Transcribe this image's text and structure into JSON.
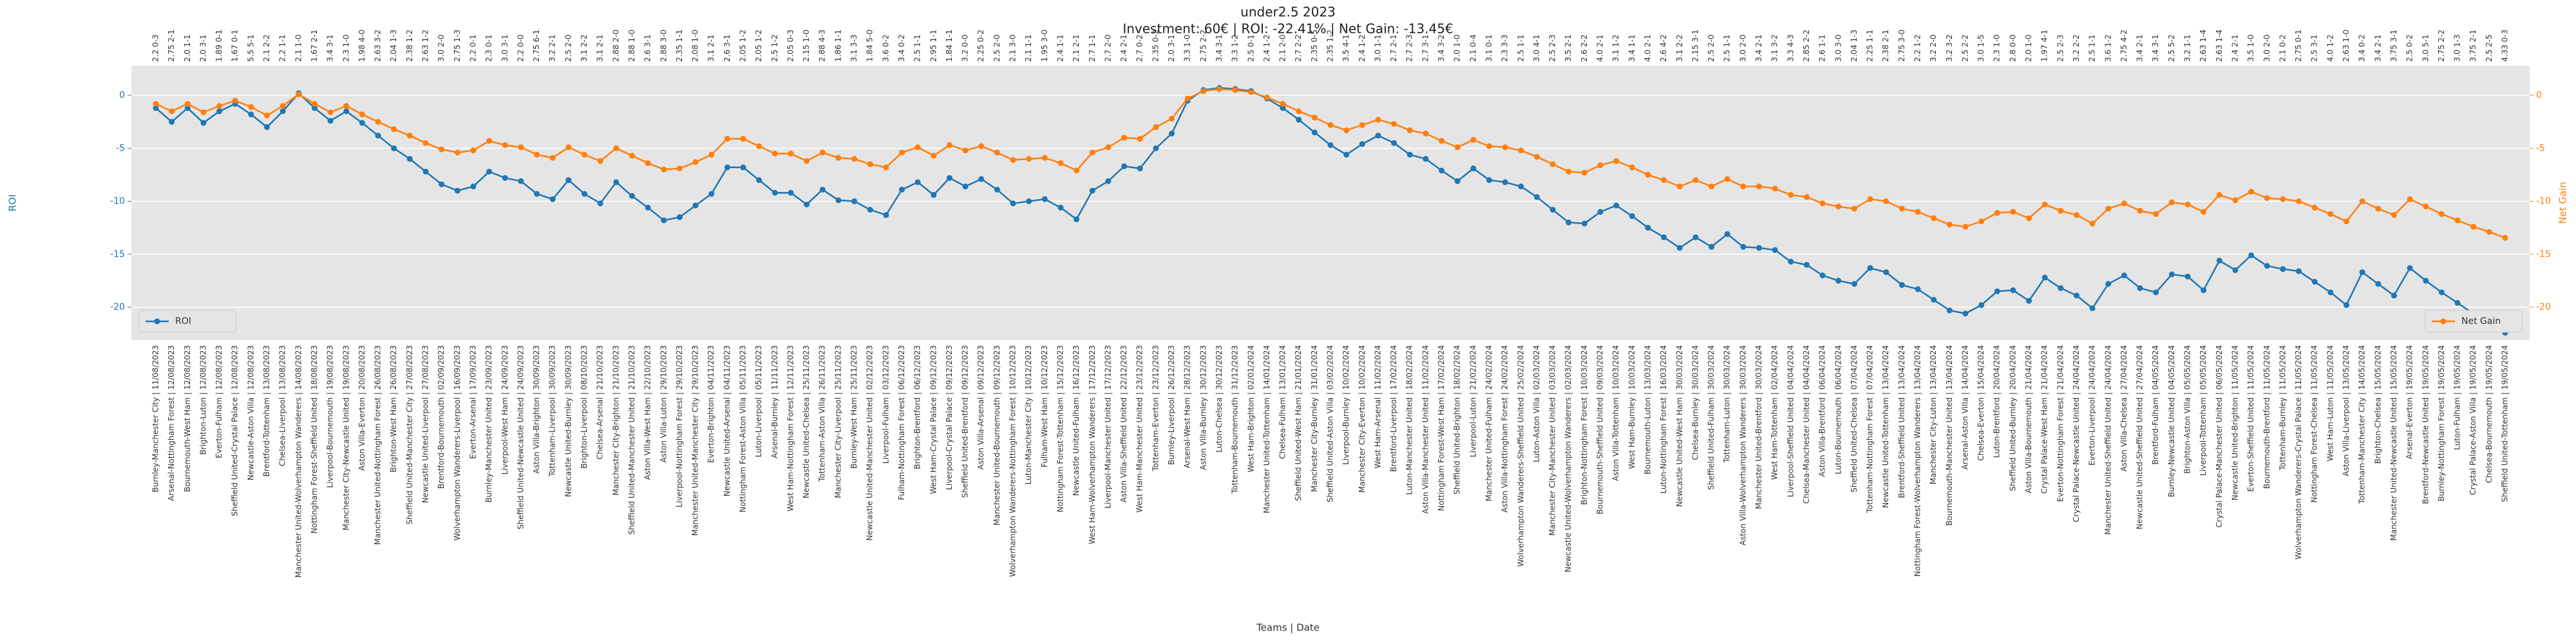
{
  "chart_data": {
    "type": "line",
    "title": "under2.5 2023",
    "subtitle": "Investment: 60€ | ROI: -22.41% | Net Gain: -13.45€",
    "x_label": "Teams | Date",
    "y_label": "ROI",
    "y2_label": "Net Gain",
    "grid": true,
    "ylim": [
      -23.1,
      2.8
    ],
    "yticks": [
      -20,
      -15,
      -10,
      -5,
      0
    ],
    "y2lim": [
      -23.1,
      2.8
    ],
    "y2ticks": [
      -20,
      -15,
      -10,
      -5,
      0
    ],
    "categories": [
      "Burnley-Manchester City | 11/08/2023",
      "Arsenal-Nottingham Forest | 12/08/2023",
      "Bournemouth-West Ham | 12/08/2023",
      "Brighton-Luton | 12/08/2023",
      "Everton-Fulham | 12/08/2023",
      "Sheffield United-Crystal Palace | 12/08/2023",
      "Newcastle-Aston Villa | 12/08/2023",
      "Brentford-Tottenham | 13/08/2023",
      "Chelsea-Liverpool | 13/08/2023",
      "Manchester United-Wolverhampton Wanderers | 14/08/2023",
      "Nottingham Forest-Sheffield United | 18/08/2023",
      "Liverpool-Bournemouth | 19/08/2023",
      "Manchester City-Newcastle United | 19/08/2023",
      "Aston Villa-Everton | 20/08/2023",
      "Manchester United-Nottingham Forest | 26/08/2023",
      "Brighton-West Ham | 26/08/2023",
      "Sheffield United-Manchester City | 27/08/2023",
      "Newcastle United-Liverpool | 27/08/2023",
      "Brentford-Bournemouth | 02/09/2023",
      "Wolverhampton Wanderers-Liverpool | 16/09/2023",
      "Everton-Arsenal | 17/09/2023",
      "Burnley-Manchester United | 23/09/2023",
      "Liverpool-West Ham | 24/09/2023",
      "Sheffield United-Newcastle United | 24/09/2023",
      "Aston Villa-Brighton | 30/09/2023",
      "Tottenham-Liverpool | 30/09/2023",
      "Newcastle United-Burnley | 30/09/2023",
      "Brighton-Liverpool | 08/10/2023",
      "Chelsea-Arsenal | 21/10/2023",
      "Manchester City-Brighton | 21/10/2023",
      "Sheffield United-Manchester United | 21/10/2023",
      "Aston Villa-West Ham | 22/10/2023",
      "Aston Villa-Luton | 29/10/2023",
      "Liverpool-Nottingham Forest | 29/10/2023",
      "Manchester United-Manchester City | 29/10/2023",
      "Everton-Brighton | 04/11/2023",
      "Newcastle United-Arsenal | 04/11/2023",
      "Nottingham Forest-Aston Villa | 05/11/2023",
      "Luton-Liverpool | 05/11/2023",
      "Arsenal-Burnley | 11/11/2023",
      "West Ham-Nottingham Forest | 12/11/2023",
      "Newcastle United-Chelsea | 25/11/2023",
      "Tottenham-Aston Villa | 26/11/2023",
      "Manchester City-Liverpool | 25/11/2023",
      "Burnley-West Ham | 25/11/2023",
      "Newcastle United-Manchester United | 02/12/2023",
      "Liverpool-Fulham | 03/12/2023",
      "Fulham-Nottingham Forest | 06/12/2023",
      "Brighton-Brentford | 06/12/2023",
      "West Ham-Crystal Palace | 09/12/2023",
      "Liverpool-Crystal Palace | 09/12/2023",
      "Sheffield United-Brentford | 09/12/2023",
      "Aston Villa-Arsenal | 09/12/2023",
      "Manchester United-Bournemouth | 09/12/2023",
      "Wolverhampton Wanderers-Nottingham Forest | 10/12/2023",
      "Luton-Manchester City | 10/12/2023",
      "Fulham-West Ham | 10/12/2023",
      "Nottingham Forest-Tottenham | 15/12/2023",
      "Newcastle United-Fulham | 16/12/2023",
      "West Ham-Wolverhampton Wanderers | 17/12/2023",
      "Liverpool-Manchester United | 17/12/2023",
      "Aston Villa-Sheffield United | 22/12/2023",
      "West Ham-Manchester United | 23/12/2023",
      "Tottenham-Everton | 23/12/2023",
      "Burnley-Liverpool | 26/12/2023",
      "Arsenal-West Ham | 28/12/2023",
      "Aston Villa-Burnley | 30/12/2023",
      "Luton-Chelsea | 30/12/2023",
      "Tottenham-Bournemouth | 31/12/2023",
      "West Ham-Brighton | 02/01/2024",
      "Manchester United-Tottenham | 14/01/2024",
      "Chelsea-Fulham | 13/01/2024",
      "Sheffield United-West Ham | 21/01/2024",
      "Manchester City-Burnley | 31/01/2024",
      "Sheffield United-Aston Villa | 03/02/2024",
      "Liverpool-Burnley | 10/02/2024",
      "Manchester City-Everton | 10/02/2024",
      "West Ham-Arsenal | 11/02/2024",
      "Brentford-Liverpool | 17/02/2024",
      "Luton-Manchester United | 18/02/2024",
      "Aston Villa-Manchester United | 11/02/2024",
      "Nottingham Forest-West Ham | 17/02/2024",
      "Sheffield United-Brighton | 18/02/2024",
      "Liverpool-Luton | 21/02/2024",
      "Manchester United-Fulham | 24/02/2024",
      "Aston Villa-Nottingham Forest | 24/02/2024",
      "Wolverhampton Wanderers-Sheffield United | 25/02/2024",
      "Luton-Aston Villa | 02/03/2024",
      "Manchester City-Manchester United | 03/03/2024",
      "Newcastle United-Wolverhampton Wanderers | 02/03/2024",
      "Brighton-Nottingham Forest | 10/03/2024",
      "Bournemouth-Sheffield United | 09/03/2024",
      "Aston Villa-Tottenham | 10/03/2024",
      "West Ham-Burnley | 10/03/2024",
      "Bournemouth-Luton | 13/03/2024",
      "Luton-Nottingham Forest | 16/03/2024",
      "Newcastle United-West Ham | 30/03/2024",
      "Chelsea-Burnley | 30/03/2024",
      "Sheffield United-Fulham | 30/03/2024",
      "Tottenham-Luton | 30/03/2024",
      "Aston Villa-Wolverhampton Wanderers | 30/03/2024",
      "Manchester United-Brentford | 30/03/2024",
      "West Ham-Tottenham | 02/04/2024",
      "Liverpool-Sheffield United | 04/04/2024",
      "Chelsea-Manchester United | 04/04/2024",
      "Aston Villa-Brentford | 06/04/2024",
      "Luton-Bournemouth | 06/04/2024",
      "Sheffield United-Chelsea | 07/04/2024",
      "Tottenham-Nottingham Forest | 07/04/2024",
      "Newcastle United-Tottenham | 13/04/2024",
      "Brentford-Sheffield United | 13/04/2024",
      "Nottingham Forest-Wolverhampton Wanderers | 13/04/2024",
      "Manchester City-Luton | 13/04/2024",
      "Bournemouth-Manchester United | 13/04/2024",
      "Arsenal-Aston Villa | 14/04/2024",
      "Chelsea-Everton | 15/04/2024",
      "Luton-Brentford | 20/04/2024",
      "Sheffield United-Burnley | 20/04/2024",
      "Aston Villa-Bournemouth | 21/04/2024",
      "Crystal Palace-West Ham | 21/04/2024",
      "Everton-Nottingham Forest | 21/04/2024",
      "Crystal Palace-Newcastle United | 24/04/2024",
      "Everton-Liverpool | 24/04/2024",
      "Manchester United-Sheffield United | 24/04/2024",
      "Aston Villa-Chelsea | 27/04/2024",
      "Newcastle United-Sheffield United | 27/04/2024",
      "Brentford-Fulham | 04/05/2024",
      "Burnley-Newcastle United | 04/05/2024",
      "Brighton-Aston Villa | 05/05/2024",
      "Liverpool-Tottenham | 05/05/2024",
      "Crystal Palace-Manchester United | 06/05/2024",
      "Newcastle United-Brighton | 11/05/2024",
      "Everton-Sheffield United | 11/05/2024",
      "Bournemouth-Brentford | 11/05/2024",
      "Tottenham-Burnley | 11/05/2024",
      "Wolverhampton Wanderers-Crystal Palace | 11/05/2024",
      "Nottingham Forest-Chelsea | 11/05/2024",
      "West Ham-Luton | 11/05/2024",
      "Aston Villa-Liverpool | 13/05/2024",
      "Tottenham-Manchester City | 14/05/2024",
      "Brighton-Chelsea | 15/05/2024",
      "Manchester United-Newcastle United | 15/05/2024",
      "Arsenal-Everton | 19/05/2024",
      "Brentford-Newcastle United | 19/05/2024",
      "Burnley-Nottingham Forest | 19/05/2024",
      "Luton-Fulham | 19/05/2024",
      "Crystal Palace-Aston Villa | 19/05/2024",
      "Chelsea-Bournemouth | 19/05/2024",
      "Sheffield United-Tottenham | 19/05/2024"
    ],
    "point_labels": [
      "2.2 0-3",
      "2.75 2-1",
      "2.0 1-1",
      "2.0 3-1",
      "1.89 0-1",
      "1.67 0-1",
      "5.5 5-1",
      "2.1 2-2",
      "2.2 1-1",
      "2.1 1-0",
      "1.67 2-1",
      "3.4 3-1",
      "2.3 1-0",
      "1.98 4-0",
      "2.63 3-2",
      "2.04 1-3",
      "2.38 1-2",
      "2.63 1-2",
      "3.0 2-0",
      "2.75 1-3",
      "2.2 0-1",
      "2.3 0-1",
      "3.0 3-1",
      "2.2 0-0",
      "2.75 6-1",
      "3.2 2-1",
      "2.5 2-0",
      "3.1 2-2",
      "3.1 2-1",
      "2.88 2-0",
      "2.88 1-0",
      "2.6 3-1",
      "2.88 3-0",
      "2.35 1-1",
      "2.08 1-0",
      "3.1 2-1",
      "2.6 3-1",
      "2.05 1-2",
      "2.05 1-2",
      "2.5 1-2",
      "2.05 0-3",
      "2.15 1-0",
      "2.88 4-3",
      "1.86 1-1",
      "3.1 3-3",
      "1.84 5-0",
      "3.6 0-2",
      "3.4 0-2",
      "2.5 1-1",
      "2.95 1-1",
      "1.84 1-1",
      "3.2 0-0",
      "2.25 0-2",
      "2.5 2-0",
      "2.1 3-0",
      "2.1 1-1",
      "1.95 3-0",
      "2.4 1-1",
      "2.1 2-1",
      "2.7 1-1",
      "2.7 2-0",
      "2.4 2-1",
      "2.7 0-2",
      "2.35 0-2",
      "2.0 3-1",
      "3.3 1-0",
      "2.75 2-2",
      "3.4 3-1",
      "3.3 1-2",
      "2.5 0-1",
      "2.4 1-2",
      "2.1 2-0",
      "2.7 2-2",
      "2.35 0-5",
      "2.35 1-2",
      "3.5 4-1",
      "2.4 1-2",
      "3.0 1-1",
      "2.7 2-1",
      "2.7 2-3",
      "2.7 3-1",
      "3.4 3-2",
      "2.0 1-0",
      "2.1 0-4",
      "3.1 0-1",
      "2.3 3-3",
      "2.5 1-1",
      "3.0 4-1",
      "2.5 2-3",
      "3.5 2-1",
      "2.6 2-2",
      "4.0 2-1",
      "3.1 1-2",
      "3.4 1-1",
      "4.0 2-1",
      "2.6 4-2",
      "3.1 2-2",
      "2.15 3-1",
      "2.5 2-0",
      "2.5 1-1",
      "3.0 2-0",
      "3.4 2-1",
      "3.1 3-2",
      "3.3 4-3",
      "2.85 2-2",
      "2.6 1-1",
      "3.0 3-0",
      "2.04 1-3",
      "2.25 1-1",
      "2.38 2-1",
      "2.75 3-0",
      "2.2 1-2",
      "3.2 2-0",
      "3.2 3-2",
      "2.5 2-2",
      "3.0 1-5",
      "2.3 1-0",
      "2.8 0-0",
      "2.0 1-0",
      "1.97 4-1",
      "2.5 2-3",
      "3.2 2-2",
      "2.5 1-1",
      "3.6 1-2",
      "2.75 4-2",
      "3.4 2-1",
      "3.4 3-1",
      "2.5 5-2",
      "3.2 1-1",
      "2.63 1-4",
      "2.63 1-4",
      "2.4 2-1",
      "3.5 1-0",
      "3.0 2-0",
      "2.1 0-2",
      "2.75 0-1",
      "2.5 3-1",
      "4.0 1-2",
      "2.63 1-0",
      "3.4 0-2",
      "3.4 2-1",
      "3.75 3-1",
      "2.5 0-2",
      "3.0 5-1",
      "2.75 2-2",
      "3.0 1-3",
      "3.75 2-1",
      "2.5 2-5",
      "4.33 0-3"
    ],
    "series": [
      {
        "name": "ROI",
        "color": "#1f77b4",
        "axis": "y",
        "legend": "lower left",
        "values": [
          -1.2,
          -2.5,
          -1.2,
          -2.6,
          -1.5,
          -0.8,
          -1.8,
          -3.0,
          -1.5,
          0.2,
          -1.2,
          -2.4,
          -1.5,
          -2.6,
          -3.8,
          -5.0,
          -6.0,
          -7.2,
          -8.4,
          -9.0,
          -8.6,
          -7.2,
          -7.8,
          -8.1,
          -9.3,
          -9.8,
          -8.0,
          -9.3,
          -10.2,
          -8.2,
          -9.5,
          -10.6,
          -11.8,
          -11.5,
          -10.4,
          -9.3,
          -6.8,
          -6.8,
          -8.0,
          -9.2,
          -9.2,
          -10.3,
          -8.9,
          -9.9,
          -10.0,
          -10.8,
          -11.3,
          -8.9,
          -8.2,
          -9.4,
          -7.8,
          -8.6,
          -7.9,
          -8.9,
          -10.2,
          -10.0,
          -9.8,
          -10.6,
          -11.7,
          -9.0,
          -8.1,
          -6.7,
          -6.9,
          -5.0,
          -3.6,
          -0.5,
          0.5,
          0.7,
          0.6,
          0.4,
          -0.3,
          -1.2,
          -2.3,
          -3.5,
          -4.7,
          -5.6,
          -4.6,
          -3.8,
          -4.5,
          -5.6,
          -6.0,
          -7.1,
          -8.1,
          -6.9,
          -8.0,
          -8.2,
          -8.6,
          -9.6,
          -10.8,
          -12.0,
          -12.1,
          -11.0,
          -10.4,
          -11.4,
          -12.5,
          -13.4,
          -14.4,
          -13.4,
          -14.3,
          -13.1,
          -14.3,
          -14.4,
          -14.6,
          -15.7,
          -16.0,
          -17.0,
          -17.5,
          -17.8,
          -16.3,
          -16.7,
          -17.9,
          -18.3,
          -19.3,
          -20.3,
          -20.6,
          -19.8,
          -18.5,
          -18.4,
          -19.4,
          -17.2,
          -18.2,
          -18.9,
          -20.1,
          -17.8,
          -17.0,
          -18.2,
          -18.6,
          -16.9,
          -17.1,
          -18.4,
          -15.6,
          -16.5,
          -15.1,
          -16.1,
          -16.4,
          -16.6,
          -17.6,
          -18.6,
          -19.8,
          -16.7,
          -17.8,
          -18.9,
          -16.3,
          -17.5,
          -18.6,
          -19.6,
          -20.6,
          -21.5,
          -22.41
        ]
      },
      {
        "name": "Net Gain",
        "color": "#ff7f0e",
        "axis": "y2",
        "legend": "lower right",
        "values": [
          -0.8,
          -1.5,
          -0.8,
          -1.6,
          -1.0,
          -0.5,
          -1.1,
          -1.9,
          -1.0,
          0.1,
          -0.8,
          -1.6,
          -1.0,
          -1.8,
          -2.5,
          -3.2,
          -3.8,
          -4.5,
          -5.1,
          -5.4,
          -5.2,
          -4.3,
          -4.7,
          -4.9,
          -5.6,
          -5.9,
          -4.9,
          -5.6,
          -6.2,
          -5.0,
          -5.7,
          -6.4,
          -7.0,
          -6.9,
          -6.3,
          -5.6,
          -4.1,
          -4.1,
          -4.8,
          -5.5,
          -5.5,
          -6.2,
          -5.4,
          -5.9,
          -6.0,
          -6.5,
          -6.8,
          -5.4,
          -4.9,
          -5.7,
          -4.7,
          -5.2,
          -4.8,
          -5.4,
          -6.1,
          -6.0,
          -5.9,
          -6.4,
          -7.1,
          -5.4,
          -4.9,
          -4.0,
          -4.1,
          -3.0,
          -2.2,
          -0.3,
          0.4,
          0.6,
          0.5,
          0.3,
          -0.2,
          -0.8,
          -1.5,
          -2.1,
          -2.8,
          -3.3,
          -2.8,
          -2.3,
          -2.7,
          -3.3,
          -3.6,
          -4.3,
          -4.9,
          -4.2,
          -4.8,
          -4.9,
          -5.2,
          -5.8,
          -6.5,
          -7.2,
          -7.3,
          -6.6,
          -6.2,
          -6.8,
          -7.5,
          -8.0,
          -8.6,
          -8.0,
          -8.6,
          -7.9,
          -8.6,
          -8.6,
          -8.8,
          -9.4,
          -9.6,
          -10.2,
          -10.5,
          -10.7,
          -9.8,
          -10.0,
          -10.7,
          -11.0,
          -11.6,
          -12.2,
          -12.4,
          -11.9,
          -11.1,
          -11.0,
          -11.6,
          -10.3,
          -10.9,
          -11.3,
          -12.1,
          -10.7,
          -10.2,
          -10.9,
          -11.2,
          -10.1,
          -10.3,
          -11.0,
          -9.4,
          -9.9,
          -9.1,
          -9.7,
          -9.8,
          -10.0,
          -10.6,
          -11.2,
          -11.9,
          -10.0,
          -10.7,
          -11.3,
          -9.8,
          -10.5,
          -11.2,
          -11.8,
          -12.4,
          -12.9,
          -13.45
        ]
      }
    ]
  }
}
